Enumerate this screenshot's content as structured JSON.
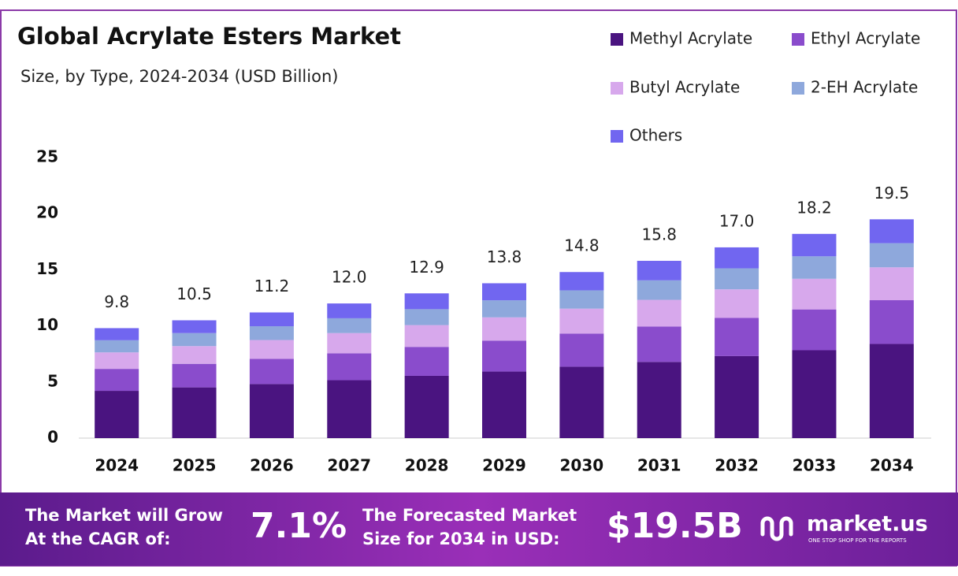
{
  "chart_data": {
    "type": "stacked_bar",
    "title": "Global Acrylate Esters Market",
    "subtitle": "Size, by Type, 2024-2034 (USD Billion)",
    "categories": [
      "2024",
      "2025",
      "2026",
      "2027",
      "2028",
      "2029",
      "2030",
      "2031",
      "2032",
      "2033",
      "2034"
    ],
    "series": [
      {
        "name": "Methyl Acrylate",
        "color": "#4a1480",
        "values": [
          4.21,
          4.52,
          4.82,
          5.16,
          5.55,
          5.93,
          6.36,
          6.79,
          7.31,
          7.83,
          8.39
        ]
      },
      {
        "name": "Ethyl Acrylate",
        "color": "#8a4ccc",
        "values": [
          1.96,
          2.1,
          2.24,
          2.4,
          2.58,
          2.76,
          2.96,
          3.16,
          3.4,
          3.64,
          3.9
        ]
      },
      {
        "name": "Butyl Acrylate",
        "color": "#d7a8ec",
        "values": [
          1.47,
          1.58,
          1.68,
          1.8,
          1.94,
          2.07,
          2.22,
          2.37,
          2.55,
          2.73,
          2.93
        ]
      },
      {
        "name": "2-EH Acrylate",
        "color": "#8ea8dc",
        "values": [
          1.08,
          1.16,
          1.23,
          1.32,
          1.42,
          1.52,
          1.63,
          1.74,
          1.87,
          2.0,
          2.15
        ]
      },
      {
        "name": "Others",
        "color": "#7166f0",
        "values": [
          1.08,
          1.14,
          1.23,
          1.32,
          1.41,
          1.52,
          1.63,
          1.74,
          1.87,
          2.0,
          2.13
        ]
      }
    ],
    "totals": [
      9.8,
      10.5,
      11.2,
      12.0,
      12.9,
      13.8,
      14.8,
      15.8,
      17.0,
      18.2,
      19.5
    ],
    "total_labels": [
      "9.8",
      "10.5",
      "11.2",
      "12.0",
      "12.9",
      "13.8",
      "14.8",
      "15.8",
      "17.0",
      "18.2",
      "19.5"
    ],
    "ylim": [
      0,
      25
    ],
    "yticks": [
      0,
      5,
      10,
      15,
      20,
      25
    ],
    "grid": false
  },
  "footer": {
    "cagr_text_1": "The Market will Grow",
    "cagr_text_2": "At the CAGR of:",
    "cagr_value": "7.1%",
    "forecast_text_1": "The Forecasted Market",
    "forecast_text_2": "Size for 2034 in USD:",
    "forecast_value": "$19.5B",
    "brand": "market.us",
    "tagline": "ONE STOP SHOP FOR THE REPORTS"
  }
}
